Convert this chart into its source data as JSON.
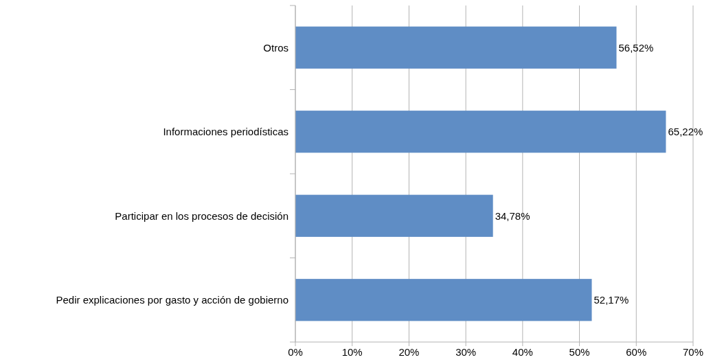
{
  "chart_data": {
    "type": "bar",
    "orientation": "horizontal",
    "categories": [
      "Otros",
      "Informaciones periodísticas",
      "Participar en los procesos de decisión",
      "Pedir explicaciones por gasto y acción de gobierno"
    ],
    "values": [
      56.52,
      65.22,
      34.78,
      52.17
    ],
    "value_labels": [
      "56,52%",
      "65,22%",
      "34,78%",
      "52,17%"
    ],
    "color": "#5f8dc5",
    "xlim": [
      0,
      70
    ],
    "xticks": [
      {
        "value": 0,
        "label": "0%"
      },
      {
        "value": 10,
        "label": "10%"
      },
      {
        "value": 20,
        "label": "20%"
      },
      {
        "value": 30,
        "label": "30%"
      },
      {
        "value": 40,
        "label": "40%"
      },
      {
        "value": 50,
        "label": "50%"
      },
      {
        "value": 60,
        "label": "60%"
      },
      {
        "value": 70,
        "label": "70%"
      }
    ],
    "grid": "x"
  }
}
